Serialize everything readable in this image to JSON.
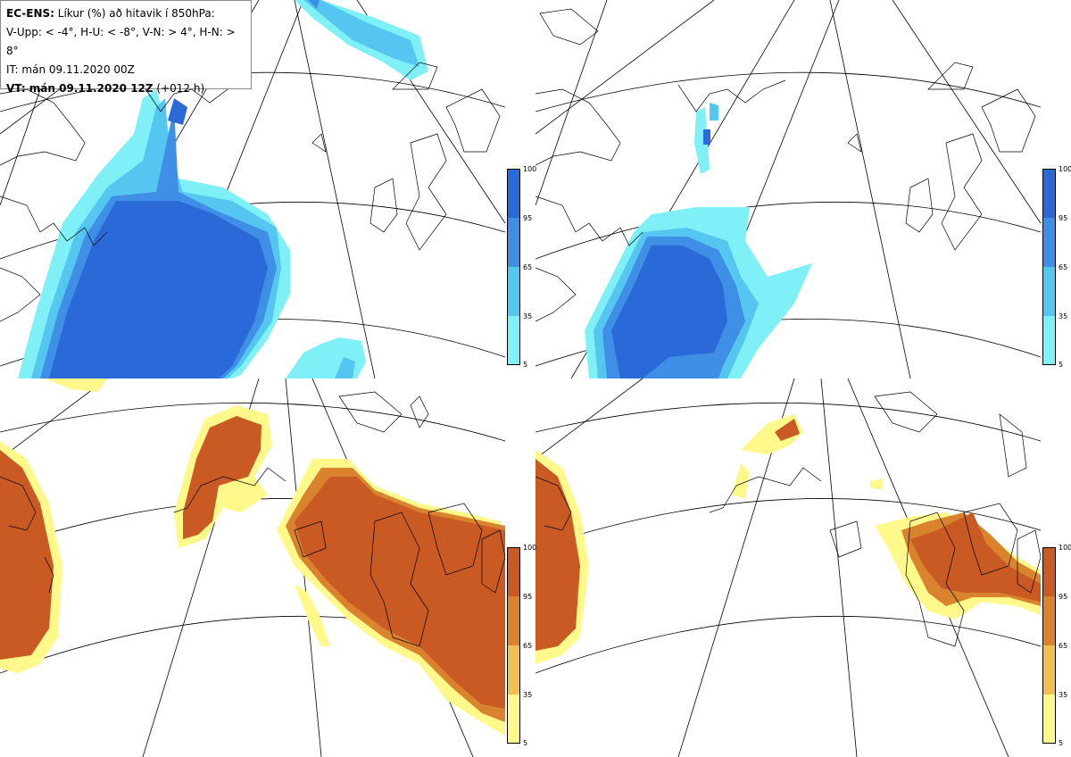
{
  "info": {
    "line1_bold": "EC-ENS:",
    "line1_rest": " Líkur (%) að hitavik í 850hPa:",
    "line2": "V-Upp: < -4°, H-U: < -8°, V-N: > 4°, H-N: > 8°",
    "line3": "IT: mán 09.11.2020 00Z",
    "line4_bold": "VT: mán 09.11.2020 12Z",
    "line4_rest": " (+012 h)"
  },
  "colorbar_blue": {
    "ticks": [
      "100",
      "95",
      "65",
      "35",
      "5"
    ],
    "colors": [
      "#2a6ad8",
      "#3f8fe6",
      "#55c6f0",
      "#7ff0f5"
    ]
  },
  "colorbar_orange": {
    "ticks": [
      "100",
      "95",
      "65",
      "35",
      "5"
    ],
    "colors": [
      "#c95a24",
      "#d9832f",
      "#f0c150",
      "#fff88a"
    ]
  },
  "panels": [
    {
      "name": "V-Upp",
      "type": "cold",
      "threshold": "< -4°"
    },
    {
      "name": "H-U",
      "type": "cold",
      "threshold": "< -8°"
    },
    {
      "name": "V-N",
      "type": "warm",
      "threshold": "> 4°"
    },
    {
      "name": "H-N",
      "type": "warm",
      "threshold": "> 8°"
    }
  ]
}
